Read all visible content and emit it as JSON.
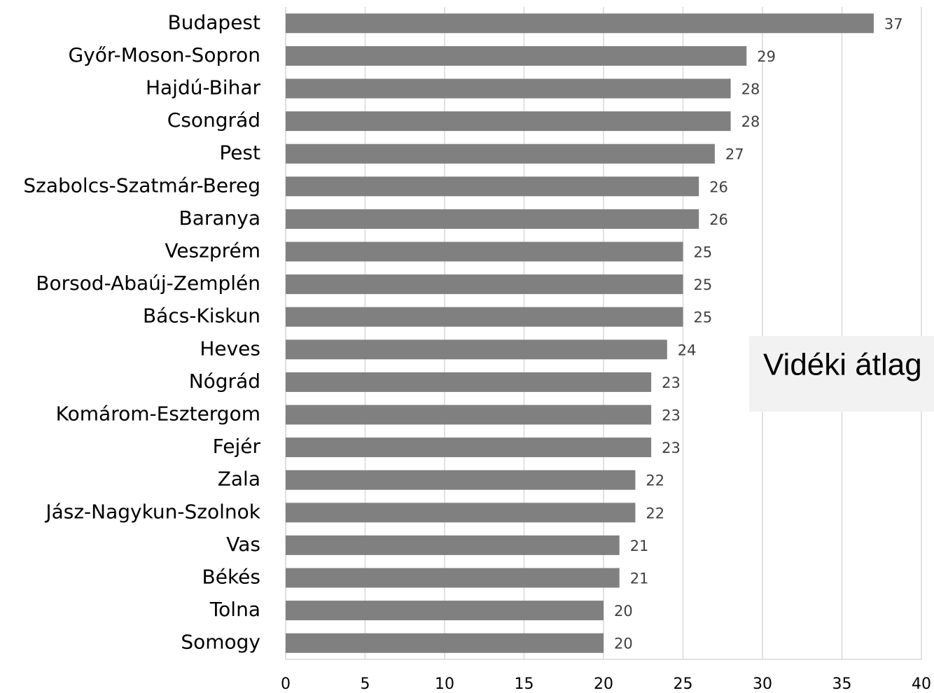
{
  "chart_data": {
    "type": "barh",
    "categories": [
      "Budapest",
      "Győr-Moson-Sopron",
      "Hajdú-Bihar",
      "Csongrád",
      "Pest",
      "Szabolcs-Szatmár-Bereg",
      "Baranya",
      "Veszprém",
      "Borsod-Abaúj-Zemplén",
      "Bács-Kiskun",
      "Heves",
      "Nógrád",
      "Komárom-Esztergom",
      "Fejér",
      "Zala",
      "Jász-Nagykun-Szolnok",
      "Vas",
      "Békés",
      "Tolna",
      "Somogy"
    ],
    "values": [
      37,
      29,
      28,
      28,
      27,
      26,
      26,
      25,
      25,
      25,
      24,
      23,
      23,
      23,
      22,
      22,
      21,
      21,
      20,
      20
    ],
    "color": "#808080",
    "xlim": [
      0,
      40
    ],
    "xticks": [
      0,
      5,
      10,
      15,
      20,
      25,
      30,
      35,
      40
    ],
    "grid": true,
    "annotations": [
      "Vidéki átlag"
    ]
  }
}
